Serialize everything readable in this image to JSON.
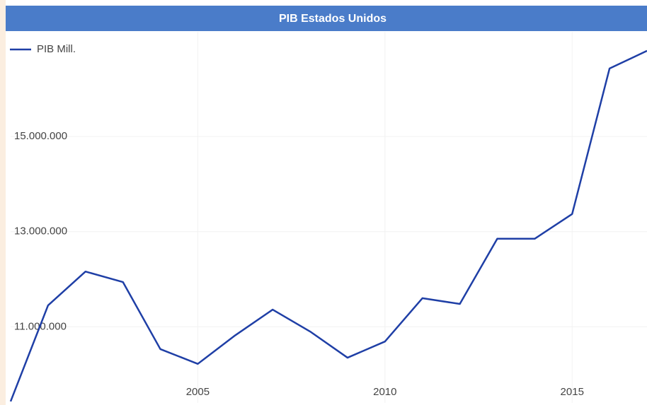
{
  "chart_data": {
    "type": "line",
    "title": "PIB Estados Unidos",
    "x": [
      2000,
      2001,
      2002,
      2003,
      2004,
      2005,
      2006,
      2007,
      2008,
      2009,
      2010,
      2011,
      2012,
      2013,
      2014,
      2015,
      2016,
      2017
    ],
    "series": [
      {
        "name": "PIB Mill.",
        "color": "#1f3fa6",
        "values": [
          9430000,
          11450000,
          12160000,
          11940000,
          10530000,
          10220000,
          10820000,
          11360000,
          10900000,
          10350000,
          10690000,
          11600000,
          11480000,
          12850000,
          12850000,
          13370000,
          16430000,
          16800000
        ]
      }
    ],
    "xlim": [
      2000,
      2017
    ],
    "xticks": [
      2005,
      2010,
      2015
    ],
    "ylim": [
      9400000,
      17200000
    ],
    "yticks": [
      {
        "value": 11000000,
        "label": "11.000.000"
      },
      {
        "value": 13000000,
        "label": "13.000.000"
      },
      {
        "value": 15000000,
        "label": "15.000.000"
      }
    ],
    "grid": true
  }
}
